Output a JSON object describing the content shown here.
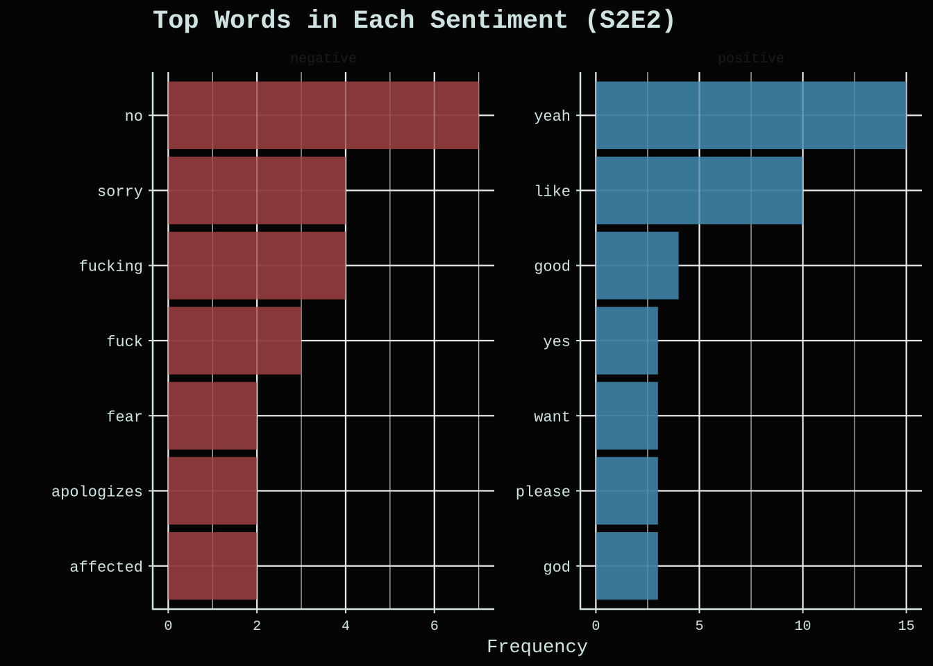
{
  "colors": {
    "background": "#050505",
    "text": "#cfe3e3",
    "grid_major": "#e6e6e6",
    "grid_minor": "#bcbcbc",
    "axis": "#cfe3e3",
    "negative": "#8f3b3b",
    "positive": "#3d7c9f"
  },
  "chart_data": {
    "type": "bar",
    "orientation": "horizontal",
    "title": "Top Words in Each Sentiment (S2E2)",
    "xlabel": "Frequency",
    "ylabel": "",
    "grid": true,
    "legend": "none",
    "facets": [
      {
        "name": "negative",
        "categories": [
          "no",
          "sorry",
          "fucking",
          "fuck",
          "fear",
          "apologizes",
          "affected"
        ],
        "values": [
          7,
          4,
          4,
          3,
          2,
          2,
          2
        ],
        "xlim": [
          -0.35,
          7.35
        ],
        "xticks": [
          0,
          2,
          4,
          6
        ],
        "color": "#8f3b3b"
      },
      {
        "name": "positive",
        "categories": [
          "yeah",
          "like",
          "good",
          "yes",
          "want",
          "please",
          "god"
        ],
        "values": [
          15,
          10,
          4,
          3,
          3,
          3,
          3
        ],
        "xlim": [
          -0.75,
          15.75
        ],
        "xticks": [
          0,
          5,
          10,
          15
        ],
        "color": "#3d7c9f"
      }
    ]
  }
}
